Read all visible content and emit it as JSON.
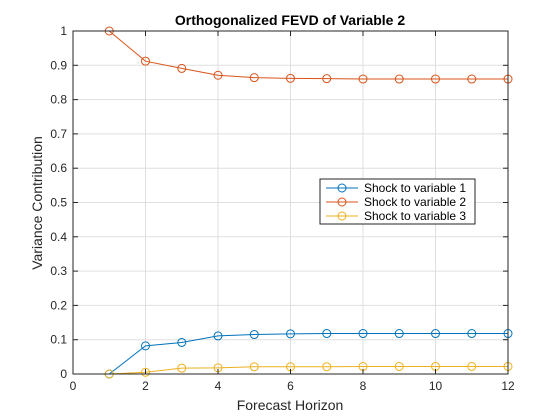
{
  "chart_data": {
    "type": "line",
    "title": "Orthogonalized FEVD of Variable 2",
    "xlabel": "Forecast Horizon",
    "ylabel": "Variance Contribution",
    "xlim": [
      0,
      12
    ],
    "ylim": [
      0,
      1
    ],
    "xticks": [
      0,
      2,
      4,
      6,
      8,
      10,
      12
    ],
    "xtick_labels": [
      "0",
      "2",
      "4",
      "6",
      "8",
      "10",
      "12"
    ],
    "yticks": [
      0,
      0.1,
      0.2,
      0.3,
      0.4,
      0.5,
      0.6,
      0.7,
      0.8,
      0.9,
      1
    ],
    "ytick_labels": [
      "0",
      "0.1",
      "0.2",
      "0.3",
      "0.4",
      "0.5",
      "0.6",
      "0.7",
      "0.8",
      "0.9",
      "1"
    ],
    "grid": true,
    "legend_position": "center-right",
    "marker": "circle",
    "x": [
      1,
      2,
      3,
      4,
      5,
      6,
      7,
      8,
      9,
      10,
      11,
      12
    ],
    "series": [
      {
        "name": "Shock to variable 1",
        "color": "#0072BD",
        "values": [
          0,
          0.082,
          0.092,
          0.111,
          0.115,
          0.117,
          0.118,
          0.118,
          0.118,
          0.118,
          0.118,
          0.118
        ]
      },
      {
        "name": "Shock to variable 2",
        "color": "#D95319",
        "values": [
          1,
          0.912,
          0.891,
          0.871,
          0.864,
          0.862,
          0.861,
          0.86,
          0.86,
          0.86,
          0.86,
          0.86
        ]
      },
      {
        "name": "Shock to variable 3",
        "color": "#EDB120",
        "values": [
          0,
          0.005,
          0.017,
          0.018,
          0.021,
          0.021,
          0.021,
          0.022,
          0.022,
          0.022,
          0.022,
          0.022
        ]
      }
    ]
  }
}
